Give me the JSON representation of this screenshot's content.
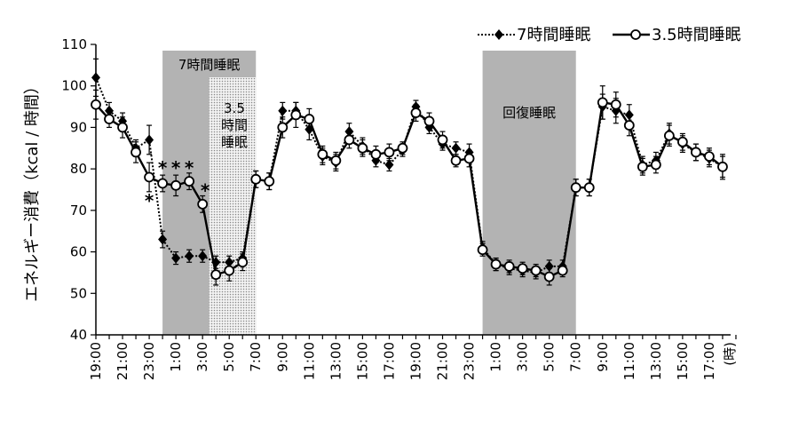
{
  "chart_data": {
    "type": "line",
    "ylabel": "エネルギー消費（kcal / 時間）",
    "x_unit_label": "(時)",
    "ylim": [
      40,
      110
    ],
    "yticks": [
      40,
      50,
      60,
      70,
      80,
      90,
      100,
      110
    ],
    "x_tick_labels": [
      "19:00",
      "21:00",
      "23:00",
      "1:00",
      "3:00",
      "5:00",
      "7:00",
      "9:00",
      "11:00",
      "13:00",
      "15:00",
      "17:00",
      "19:00",
      "21:00",
      "23:00",
      "1:00",
      "3:00",
      "5:00",
      "7:00",
      "9:00",
      "11:00",
      "13:00",
      "15:00",
      "17:00"
    ],
    "grid": false,
    "legend_position": "top-right",
    "bands": [
      {
        "label": "7時間睡眠",
        "start": 5,
        "end": 12,
        "style": "gray"
      },
      {
        "label": "3.5時間睡眠",
        "label_lines": [
          "3.5",
          "時間",
          "睡眠"
        ],
        "start": 8.5,
        "end": 12,
        "style": "dotted"
      },
      {
        "label": "回復睡眠",
        "start": 29,
        "end": 36,
        "style": "gray"
      }
    ],
    "series": [
      {
        "name": "7時間睡眠",
        "marker": "diamond",
        "line": "dotted",
        "values": [
          102,
          94,
          91.5,
          85,
          87,
          63,
          58.5,
          59,
          59,
          57.5,
          57.5,
          58.5,
          77.5,
          77,
          94,
          94,
          89.5,
          83,
          81.5,
          89,
          85.5,
          82,
          81,
          84.5,
          95,
          90,
          86,
          85,
          84,
          61,
          57,
          56,
          55.5,
          55,
          56.5,
          56.5,
          75.5,
          75.5,
          95,
          94,
          93,
          81,
          82,
          88.5,
          86,
          84,
          82.5,
          80.5
        ],
        "errors": [
          4.5,
          2,
          2,
          2,
          3.5,
          2,
          1.5,
          1.5,
          1.5,
          1.5,
          1.5,
          1.5,
          2,
          2,
          2,
          2,
          2.5,
          2,
          2,
          2,
          2,
          1.5,
          1.5,
          1.5,
          1.5,
          1.5,
          1.5,
          1.5,
          2,
          1.5,
          1.5,
          1.5,
          1.5,
          1.5,
          1.5,
          1.5,
          2,
          2,
          3,
          3,
          2.5,
          2,
          2,
          2.5,
          2,
          2,
          2,
          2.5
        ]
      },
      {
        "name": "3.5時間睡眠",
        "marker": "circle-open",
        "line": "solid",
        "values": [
          95.5,
          92,
          90,
          84,
          78,
          76.5,
          76,
          77,
          71.5,
          54.5,
          55.5,
          57.5,
          77.5,
          77,
          90,
          93,
          92,
          83.5,
          82,
          87,
          85,
          83.5,
          84,
          85,
          93.5,
          91.5,
          87,
          82,
          82.5,
          60.5,
          57,
          56.5,
          56,
          55.5,
          54,
          55.5,
          75.5,
          75.5,
          96,
          95.5,
          90.5,
          80.5,
          81,
          88,
          86.5,
          84,
          83,
          80.5
        ],
        "errors": [
          3.5,
          2,
          2.5,
          2.5,
          3.5,
          2,
          2.5,
          2,
          2,
          2.5,
          2.5,
          2,
          2,
          2,
          2.5,
          3,
          2.5,
          2,
          2,
          2,
          2,
          2,
          2,
          1.5,
          2,
          2,
          2,
          1.5,
          2,
          1.5,
          1.5,
          1.5,
          1.5,
          1.5,
          2,
          1.5,
          2,
          2,
          4,
          3,
          2.5,
          2,
          2,
          2.5,
          2,
          2,
          2,
          3
        ]
      }
    ],
    "annotations": [
      {
        "text": "*",
        "x": 4.0,
        "y": 72.5
      },
      {
        "text": "*",
        "x": 5.0,
        "y": 80.5
      },
      {
        "text": "*",
        "x": 6.0,
        "y": 80.5
      },
      {
        "text": "*",
        "x": 7.0,
        "y": 80.5
      },
      {
        "text": "*",
        "x": 8.2,
        "y": 75
      }
    ]
  }
}
